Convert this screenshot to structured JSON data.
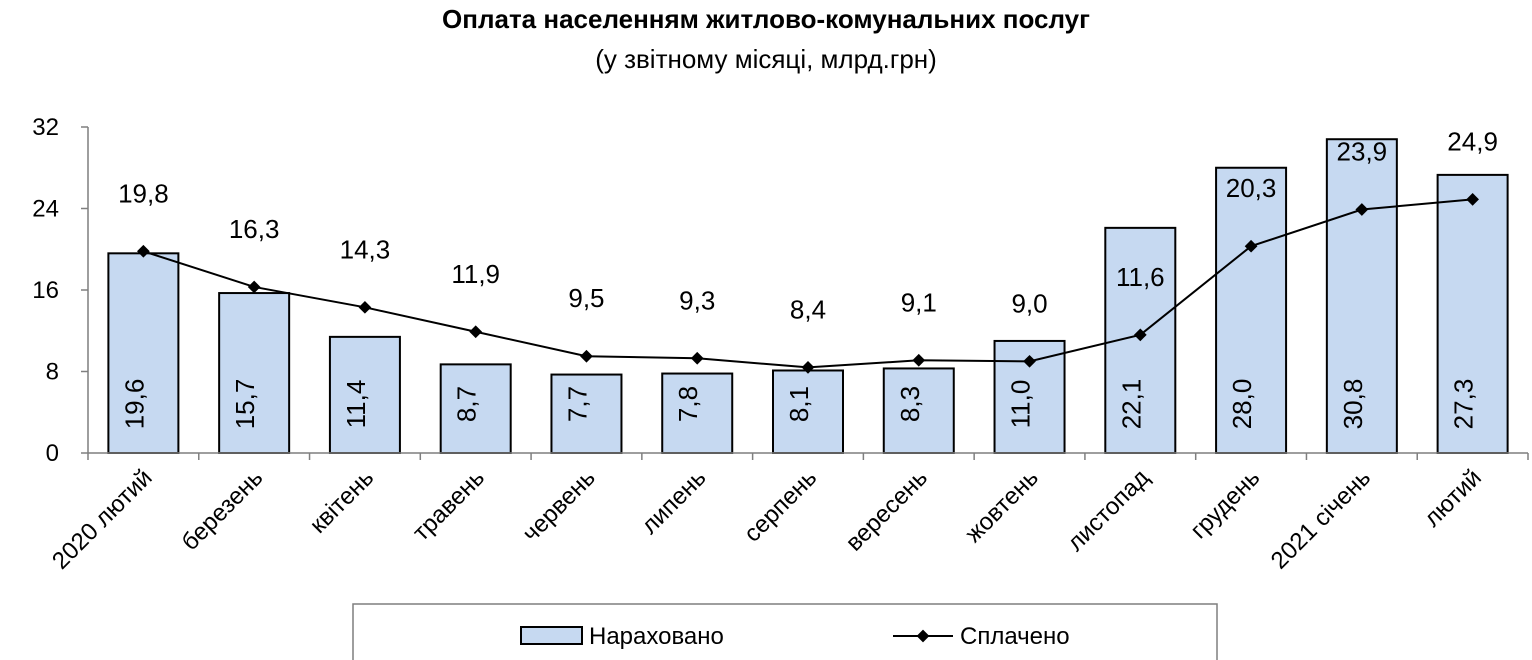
{
  "chart_data": {
    "type": "bar",
    "title": "Оплата населенням житлово-комунальних послуг",
    "subtitle": "(у звітному місяці, млрд.грн)",
    "categories": [
      "2020 лютий",
      "березень",
      "квітень",
      "травень",
      "червень",
      "липень",
      "серпень",
      "вересень",
      "жовтень",
      "листопад",
      "грудень",
      "2021 січень",
      "лютий"
    ],
    "series": [
      {
        "name": "Нараховано",
        "type": "bar",
        "color": "#c6d9f1",
        "values": [
          19.6,
          15.7,
          11.4,
          8.7,
          7.7,
          7.8,
          8.1,
          8.3,
          11.0,
          22.1,
          28.0,
          30.8,
          27.3
        ],
        "labels": [
          "19,6",
          "15,7",
          "11,4",
          "8,7",
          "7,7",
          "7,8",
          "8,1",
          "8,3",
          "11,0",
          "22,1",
          "28,0",
          "30,8",
          "27,3"
        ]
      },
      {
        "name": "Сплачено",
        "type": "line",
        "color": "#000000",
        "values": [
          19.8,
          16.3,
          14.3,
          11.9,
          9.5,
          9.3,
          8.4,
          9.1,
          9.0,
          11.6,
          20.3,
          23.9,
          24.9
        ],
        "labels": [
          "19,8",
          "16,3",
          "14,3",
          "11,9",
          "9,5",
          "9,3",
          "8,4",
          "9,1",
          "9,0",
          "11,6",
          "20,3",
          "23,9",
          "24,9"
        ]
      }
    ],
    "ylim": [
      0,
      32
    ],
    "yticks": [
      "0",
      "8",
      "16",
      "24",
      "32"
    ],
    "grid": false,
    "legend_position": "bottom"
  }
}
